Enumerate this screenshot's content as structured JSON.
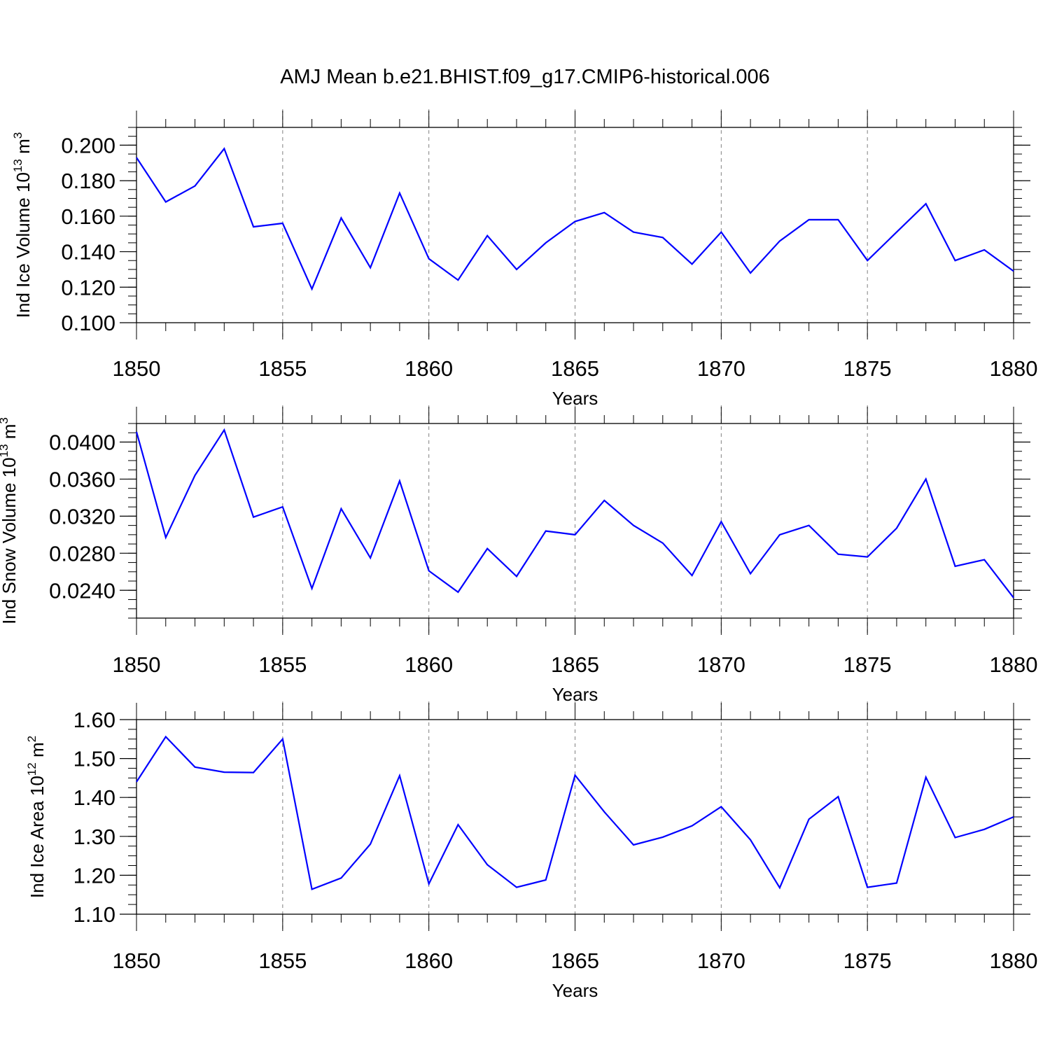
{
  "title": "AMJ Mean b.e21.BHIST.f09_g17.CMIP6-historical.006",
  "colors": {
    "series": "#0000ff",
    "axis": "#000000",
    "grid": "#808080"
  },
  "chart_data": [
    {
      "type": "line",
      "title": "AMJ Mean b.e21.BHIST.f09_g17.CMIP6-historical.006",
      "xlabel": "Years",
      "ylabel": "Ind Ice Volume 10",
      "ylabel_exp": "13",
      "ylabel_unit": " m",
      "ylabel_unit_exp": "3",
      "xlim": [
        1850,
        1880
      ],
      "ylim": [
        0.1,
        0.21
      ],
      "x_ticks": [
        "1850",
        "1855",
        "1860",
        "1865",
        "1870",
        "1875",
        "1880"
      ],
      "y_ticks": [
        "0.100",
        "0.120",
        "0.140",
        "0.160",
        "0.180",
        "0.200"
      ],
      "grid": "vertical dashed at major x ticks",
      "series": [
        {
          "name": "Ind Ice Volume",
          "x": [
            1850,
            1851,
            1852,
            1853,
            1854,
            1855,
            1856,
            1857,
            1858,
            1859,
            1860,
            1861,
            1862,
            1863,
            1864,
            1865,
            1866,
            1867,
            1868,
            1869,
            1870,
            1871,
            1872,
            1873,
            1874,
            1875,
            1876,
            1877,
            1878,
            1879,
            1880
          ],
          "values": [
            0.193,
            0.168,
            0.177,
            0.198,
            0.154,
            0.156,
            0.119,
            0.159,
            0.131,
            0.173,
            0.136,
            0.124,
            0.149,
            0.13,
            0.145,
            0.157,
            0.162,
            0.151,
            0.148,
            0.133,
            0.151,
            0.128,
            0.146,
            0.158,
            0.158,
            0.135,
            0.151,
            0.167,
            0.135,
            0.141,
            0.129
          ]
        }
      ]
    },
    {
      "type": "line",
      "xlabel": "Years",
      "ylabel": "Ind Snow Volume 10",
      "ylabel_exp": "13",
      "ylabel_unit": " m",
      "ylabel_unit_exp": "3",
      "xlim": [
        1850,
        1880
      ],
      "ylim": [
        0.021,
        0.042
      ],
      "x_ticks": [
        "1850",
        "1855",
        "1860",
        "1865",
        "1870",
        "1875",
        "1880"
      ],
      "y_ticks": [
        "0.0240",
        "0.0280",
        "0.0320",
        "0.0360",
        "0.0400"
      ],
      "grid": "vertical dashed at major x ticks",
      "series": [
        {
          "name": "Ind Snow Volume",
          "x": [
            1850,
            1851,
            1852,
            1853,
            1854,
            1855,
            1856,
            1857,
            1858,
            1859,
            1860,
            1861,
            1862,
            1863,
            1864,
            1865,
            1866,
            1867,
            1868,
            1869,
            1870,
            1871,
            1872,
            1873,
            1874,
            1875,
            1876,
            1877,
            1878,
            1879,
            1880
          ],
          "values": [
            0.0411,
            0.0297,
            0.0364,
            0.0413,
            0.0319,
            0.033,
            0.0242,
            0.0328,
            0.0275,
            0.0358,
            0.0261,
            0.0238,
            0.0285,
            0.0255,
            0.0304,
            0.03,
            0.0337,
            0.031,
            0.0291,
            0.0256,
            0.0314,
            0.0258,
            0.03,
            0.031,
            0.0279,
            0.0276,
            0.0307,
            0.036,
            0.0266,
            0.0273,
            0.0232
          ]
        }
      ]
    },
    {
      "type": "line",
      "xlabel": "Years",
      "ylabel": "Ind Ice Area 10",
      "ylabel_exp": "12",
      "ylabel_unit": " m",
      "ylabel_unit_exp": "2",
      "xlim": [
        1850,
        1880
      ],
      "ylim": [
        1.1,
        1.6
      ],
      "x_ticks": [
        "1850",
        "1855",
        "1860",
        "1865",
        "1870",
        "1875",
        "1880"
      ],
      "y_ticks": [
        "1.10",
        "1.20",
        "1.30",
        "1.40",
        "1.50",
        "1.60"
      ],
      "grid": "vertical dashed at major x ticks",
      "series": [
        {
          "name": "Ind Ice Area",
          "x": [
            1850,
            1851,
            1852,
            1853,
            1854,
            1855,
            1856,
            1857,
            1858,
            1859,
            1860,
            1861,
            1862,
            1863,
            1864,
            1865,
            1866,
            1867,
            1868,
            1869,
            1870,
            1871,
            1872,
            1873,
            1874,
            1875,
            1876,
            1877,
            1878,
            1879,
            1880
          ],
          "values": [
            1.44,
            1.556,
            1.478,
            1.465,
            1.464,
            1.55,
            1.164,
            1.193,
            1.28,
            1.456,
            1.178,
            1.33,
            1.227,
            1.169,
            1.188,
            1.457,
            1.363,
            1.278,
            1.298,
            1.327,
            1.376,
            1.291,
            1.168,
            1.344,
            1.402,
            1.169,
            1.18,
            1.452,
            1.297,
            1.318,
            1.35
          ]
        }
      ]
    }
  ]
}
